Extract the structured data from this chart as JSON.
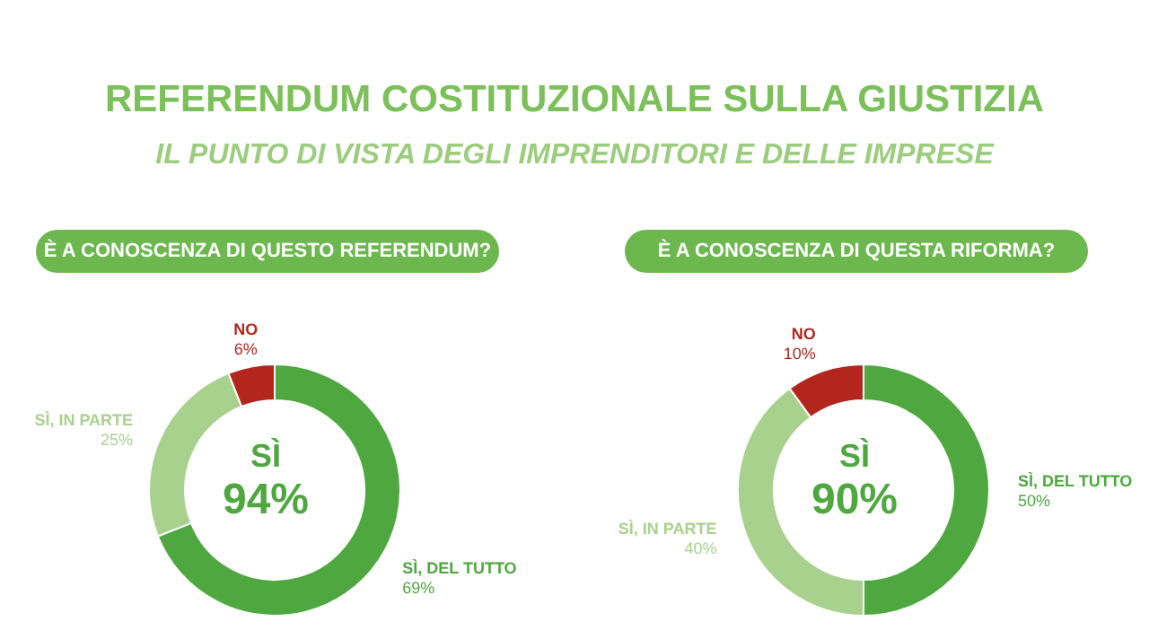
{
  "chart_data": [
    {
      "type": "donut",
      "title": "REFERENDUM COSTITUZIONALE SULLA GIUSTIZIA",
      "subtitle": "IL PUNTO DI VISTA DEGLI IMPRENDITORI E DELLE IMPRESE",
      "annotations": [
        "È A CONOSCENZA DI QUESTO REFERENDUM?",
        "SÌ",
        "94%"
      ],
      "categories": [
        "SÌ, DEL TUTTO",
        "SÌ, IN PARTE",
        "NO"
      ],
      "values": [
        69,
        25,
        6
      ],
      "value_labels": [
        "69%",
        "25%",
        "6%"
      ],
      "colors": [
        "#4ea83f",
        "#a9d18e",
        "#b3261e"
      ]
    },
    {
      "type": "donut",
      "annotations": [
        "È A CONOSCENZA DI QUESTA RIFORMA?",
        "SÌ",
        "90%"
      ],
      "categories": [
        "SÌ, DEL TUTTO",
        "SÌ, IN PARTE",
        "NO"
      ],
      "values": [
        50,
        40,
        10
      ],
      "value_labels": [
        "50%",
        "40%",
        "10%"
      ],
      "colors": [
        "#4ea83f",
        "#a9d18e",
        "#b3261e"
      ]
    }
  ]
}
